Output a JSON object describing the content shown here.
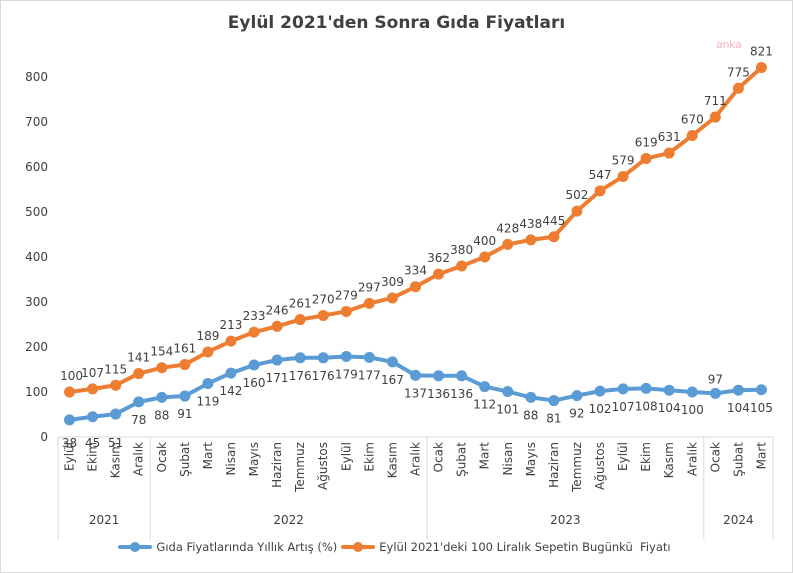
{
  "chart_data": {
    "type": "line",
    "title": "Eylül 2021'den Sonra Gıda Fiyatları",
    "xlabel": "",
    "ylabel": "",
    "ylim": [
      0,
      800
    ],
    "yticks": [
      0,
      100,
      200,
      300,
      400,
      500,
      600,
      700,
      800
    ],
    "grid": false,
    "legend_position": "bottom",
    "categories": [
      "Eylül",
      "Ekim",
      "Kasım",
      "Aralık",
      "Ocak",
      "Şubat",
      "Mart",
      "Nisan",
      "Mayıs",
      "Haziran",
      "Temmuz",
      "Ağustos",
      "Eylül",
      "Ekim",
      "Kasım",
      "Aralık",
      "Ocak",
      "Şubat",
      "Mart",
      "Nisan",
      "Mayıs",
      "Haziran",
      "Temmuz",
      "Ağustos",
      "Eylül",
      "Ekim",
      "Kasım",
      "Aralık",
      "Ocak",
      "Şubat",
      "Mart"
    ],
    "year_groups": [
      {
        "label": "2021",
        "count": 4
      },
      {
        "label": "2022",
        "count": 12
      },
      {
        "label": "2023",
        "count": 12
      },
      {
        "label": "2024",
        "count": 3
      }
    ],
    "series": [
      {
        "name": "Gıda Fiyatlarında Yıllık Artış (%)",
        "color": "#5b9bd5",
        "label_position": "below",
        "values": [
          38,
          45,
          51,
          78,
          88,
          91,
          119,
          142,
          160,
          171,
          176,
          176,
          179,
          177,
          167,
          137,
          136,
          136,
          112,
          101,
          88,
          81,
          92,
          102,
          107,
          108,
          104,
          100,
          97,
          104,
          105
        ]
      },
      {
        "name": "Eylül 2021'deki 100 Liralık Sepetin Bugünkü  Fiyatı",
        "color": "#ed7d31",
        "label_position": "above",
        "values": [
          100,
          107,
          115,
          141,
          154,
          161,
          189,
          213,
          233,
          246,
          261,
          270,
          279,
          297,
          309,
          334,
          362,
          380,
          400,
          428,
          438,
          445,
          502,
          547,
          579,
          619,
          631,
          670,
          711,
          775,
          821
        ]
      }
    ]
  },
  "watermark": "anka"
}
